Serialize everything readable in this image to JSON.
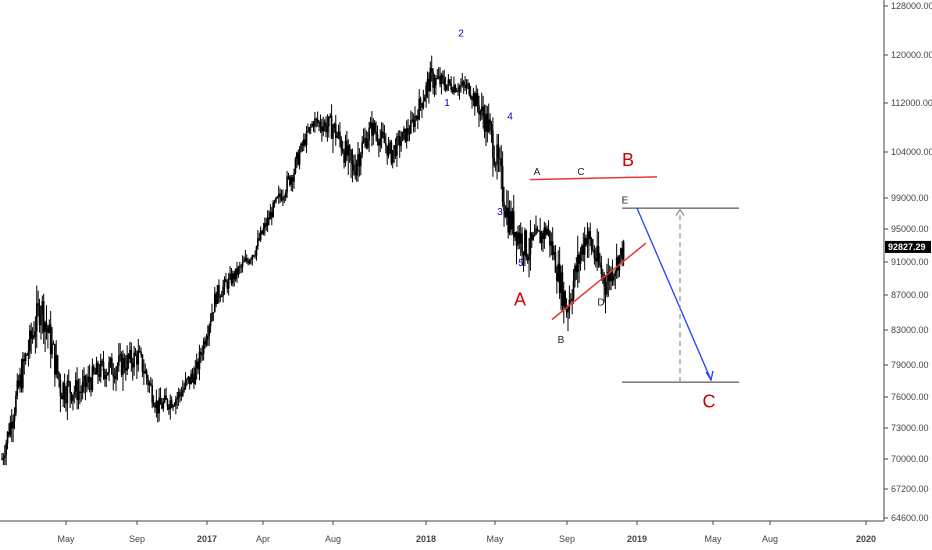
{
  "chart_data": {
    "type": "candlestick",
    "price_axis": {
      "ticks": [
        "128000.00",
        "120000.00",
        "112000.00",
        "104000.00",
        "99000.00",
        "95000.00",
        "91000.00",
        "87000.00",
        "83000.00",
        "79000.00",
        "76000.00",
        "73000.00",
        "70000.00",
        "67200.00",
        "64600.00"
      ],
      "values": [
        128000,
        120000,
        112000,
        104000,
        99000,
        95000,
        91000,
        87000,
        83000,
        79000,
        76000,
        73000,
        70000,
        67200,
        64600
      ],
      "scale": "log"
    },
    "last_price": {
      "label": "92827.29",
      "value": 92827.29,
      "color": "#000000"
    },
    "time_axis": {
      "labels": [
        "May",
        "Sep",
        "2017",
        "Apr",
        "Aug",
        "2018",
        "May",
        "Sep",
        "2019",
        "May",
        "Aug",
        "2020"
      ],
      "bold": [
        false,
        false,
        true,
        false,
        false,
        true,
        false,
        false,
        true,
        false,
        false,
        true
      ]
    },
    "series": [
      {
        "x": [
          "2016-03",
          "2016-04",
          "2016-05",
          "2016-06",
          "2016-07",
          "2016-08",
          "2016-09",
          "2016-10",
          "2016-11",
          "2016-12",
          "2017-01",
          "2017-02",
          "2017-03",
          "2017-04",
          "2017-05",
          "2017-06",
          "2017-07",
          "2017-08",
          "2017-09",
          "2017-10",
          "2017-11",
          "2017-12",
          "2018-01",
          "2018-02",
          "2018-03",
          "2018-04",
          "2018-05",
          "2018-06",
          "2018-07",
          "2018-08",
          "2018-09",
          "2018-10",
          "2018-11"
        ],
        "values": [
          70000,
          78000,
          86000,
          77000,
          76500,
          78500,
          79000,
          80000,
          75000,
          76000,
          78500,
          87000,
          89500,
          92500,
          98000,
          102000,
          109000,
          108000,
          102000,
          108000,
          104000,
          108000,
          116000,
          115000,
          114500,
          108000,
          96500,
          92500,
          95000,
          85500,
          94500,
          88500,
          92827
        ],
        "low": [
          68500,
          73000,
          76000,
          70500,
          73000,
          74500,
          75000,
          76000,
          72500,
          74000,
          76000,
          84000,
          87000,
          89500,
          95000,
          99000,
          105000,
          99500,
          99000,
          101500,
          100500,
          104500,
          110000,
          112000,
          109500,
          100000,
          91500,
          88000,
          91000,
          84300,
          89500,
          88300,
          91000
        ],
        "high": [
          73500,
          81000,
          87500,
          80000,
          79000,
          81000,
          82500,
          83000,
          77500,
          79000,
          81500,
          90000,
          91500,
          94500,
          100000,
          104500,
          111500,
          111000,
          109000,
          111000,
          108500,
          112500,
          121000,
          119000,
          117000,
          113500,
          103000,
          98500,
          98500,
          95500,
          100500,
          99000,
          97000
        ]
      }
    ],
    "wave_labels": [
      {
        "text": "1",
        "color": "#0000cc",
        "price": 111500
      },
      {
        "text": "2",
        "color": "#0000cc",
        "price": 123000
      },
      {
        "text": "3",
        "color": "#0000cc",
        "price": 96800
      },
      {
        "text": "4",
        "color": "#0000cc",
        "price": 109300
      },
      {
        "text": "5",
        "color": "#0000cc",
        "price": 90500
      },
      {
        "text": "A",
        "color": "#222222",
        "price": 101500
      },
      {
        "text": "C",
        "color": "#222222",
        "price": 101500
      },
      {
        "text": "E",
        "color": "#222222",
        "price": 98300
      },
      {
        "text": "D",
        "color": "#222222",
        "price": 85800
      },
      {
        "text": "B",
        "color": "#222222",
        "price": 81500
      },
      {
        "text": "B",
        "color": "#cc0000",
        "price": 102500
      },
      {
        "text": "A",
        "color": "#cc0000",
        "price": 85800
      },
      {
        "text": "C",
        "color": "#cc0000",
        "price": 75000
      }
    ],
    "grid": false,
    "legend": "none"
  },
  "colors": {
    "candles": "#000000",
    "axis": "#444444",
    "triangle_lines": "#e53935",
    "projection_arrow": "#1e40ff",
    "target_lines": "#333333",
    "measure_arrow": "#777777",
    "big_label": "#cc0000",
    "small_wave": "#0000cc"
  }
}
